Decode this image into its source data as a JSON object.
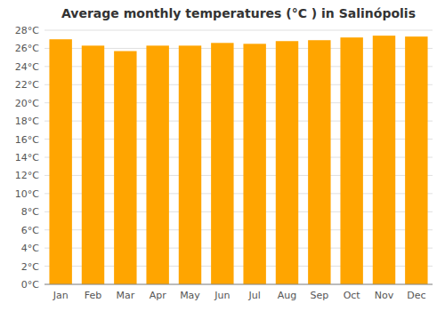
{
  "chart_data": {
    "type": "bar",
    "title": "Average monthly temperatures (°C ) in Salinópolis",
    "categories": [
      "Jan",
      "Feb",
      "Mar",
      "Apr",
      "May",
      "Jun",
      "Jul",
      "Aug",
      "Sep",
      "Oct",
      "Nov",
      "Dec"
    ],
    "values": [
      27.0,
      26.3,
      25.7,
      26.3,
      26.3,
      26.6,
      26.5,
      26.8,
      26.9,
      27.2,
      27.4,
      27.3
    ],
    "color": "#FFA500",
    "ylim": [
      0,
      28
    ],
    "yticks": [
      {
        "value": 0,
        "label": "0°C"
      },
      {
        "value": 2,
        "label": "2°C"
      },
      {
        "value": 4,
        "label": "4°C"
      },
      {
        "value": 6,
        "label": "6°C"
      },
      {
        "value": 8,
        "label": "8°C"
      },
      {
        "value": 10,
        "label": "10°C"
      },
      {
        "value": 12,
        "label": "12°C"
      },
      {
        "value": 14,
        "label": "14°C"
      },
      {
        "value": 16,
        "label": "16°C"
      },
      {
        "value": 18,
        "label": "18°C"
      },
      {
        "value": 20,
        "label": "20°C"
      },
      {
        "value": 22,
        "label": "22°C"
      },
      {
        "value": 24,
        "label": "24°C"
      },
      {
        "value": 26,
        "label": "26°C"
      },
      {
        "value": 28,
        "label": "28°C"
      }
    ],
    "grid": true
  }
}
